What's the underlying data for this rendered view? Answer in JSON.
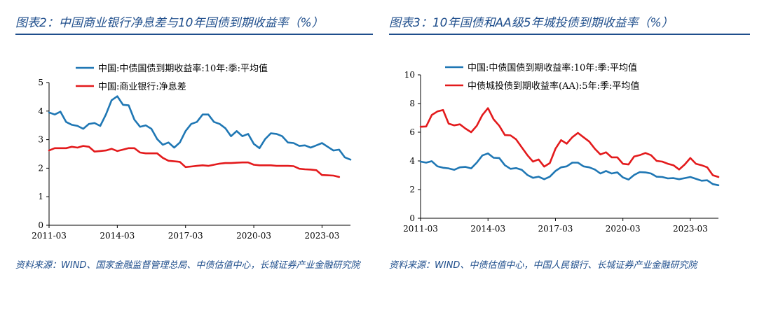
{
  "chart_data": [
    {
      "type": "line",
      "title": "图表2：中国商业银行净息差与10年国债到期收益率（%）",
      "source": "资料来源：WIND、国家金融监督管理总局、中债估值中心，长城证券产业金融研究院",
      "xlabel": "",
      "ylabel": "",
      "xticks": [
        "2011-03",
        "2014-03",
        "2017-03",
        "2020-03",
        "2023-03"
      ],
      "ylim": [
        0,
        5
      ],
      "yticks": [
        0,
        1,
        2,
        3,
        4,
        5
      ],
      "legend_position": "top-left",
      "grid": false,
      "series": [
        {
          "name": "中国:中债国债到期收益率:10年:季:平均值",
          "color": "#1f77b4",
          "values": [
            3.95,
            3.88,
            3.98,
            3.62,
            3.52,
            3.48,
            3.38,
            3.55,
            3.58,
            3.48,
            3.88,
            4.38,
            4.52,
            4.22,
            4.2,
            3.7,
            3.45,
            3.5,
            3.38,
            3.02,
            2.82,
            2.9,
            2.72,
            2.9,
            3.3,
            3.55,
            3.62,
            3.88,
            3.88,
            3.62,
            3.55,
            3.4,
            3.12,
            3.3,
            3.12,
            3.2,
            2.85,
            2.7,
            3.02,
            3.22,
            3.2,
            3.12,
            2.9,
            2.88,
            2.78,
            2.8,
            2.72,
            2.8,
            2.88,
            2.75,
            2.62,
            2.65,
            2.38,
            2.3
          ]
        },
        {
          "name": "中国:商业银行:净息差",
          "color": "#e31a1c",
          "values": [
            2.62,
            2.7,
            2.7,
            2.7,
            2.75,
            2.72,
            2.78,
            2.75,
            2.58,
            2.6,
            2.62,
            2.68,
            2.6,
            2.65,
            2.7,
            2.7,
            2.55,
            2.52,
            2.52,
            2.52,
            2.36,
            2.26,
            2.24,
            2.22,
            2.04,
            2.06,
            2.08,
            2.1,
            2.08,
            2.12,
            2.16,
            2.18,
            2.18,
            2.19,
            2.2,
            2.2,
            2.12,
            2.1,
            2.1,
            2.1,
            2.08,
            2.08,
            2.08,
            2.07,
            1.98,
            1.96,
            1.95,
            1.93,
            1.76,
            1.75,
            1.74,
            1.69
          ]
        }
      ]
    },
    {
      "type": "line",
      "title": "图表3：10年国债和AA级5年城投债到期收益率（%）",
      "source": "资料来源：WIND、中债估值中心，中国人民银行、长城证券产业金融研究院",
      "xlabel": "",
      "ylabel": "",
      "xticks": [
        "2011-03",
        "2014-03",
        "2017-03",
        "2020-03",
        "2023-03"
      ],
      "ylim": [
        0,
        10
      ],
      "yticks": [
        0,
        2,
        4,
        6,
        8,
        10
      ],
      "legend_position": "top-left",
      "grid": false,
      "series": [
        {
          "name": "中国:中债国债到期收益率:10年:季:平均值",
          "color": "#1f77b4",
          "values": [
            3.95,
            3.88,
            3.98,
            3.62,
            3.52,
            3.48,
            3.38,
            3.55,
            3.58,
            3.48,
            3.88,
            4.38,
            4.52,
            4.22,
            4.2,
            3.7,
            3.45,
            3.5,
            3.38,
            3.02,
            2.82,
            2.9,
            2.72,
            2.9,
            3.3,
            3.55,
            3.62,
            3.88,
            3.88,
            3.62,
            3.55,
            3.4,
            3.12,
            3.3,
            3.12,
            3.2,
            2.85,
            2.7,
            3.02,
            3.22,
            3.2,
            3.12,
            2.9,
            2.88,
            2.78,
            2.8,
            2.72,
            2.8,
            2.88,
            2.75,
            2.62,
            2.65,
            2.38,
            2.3
          ]
        },
        {
          "name": "中债城投债到期收益率(AA):5年:季:平均值",
          "color": "#e31a1c",
          "values": [
            6.38,
            6.4,
            7.2,
            7.45,
            7.55,
            6.6,
            6.48,
            6.55,
            6.25,
            6.0,
            6.45,
            7.2,
            7.68,
            6.9,
            6.45,
            5.8,
            5.78,
            5.5,
            4.95,
            4.4,
            3.95,
            4.1,
            3.6,
            3.85,
            4.85,
            5.45,
            5.2,
            5.65,
            5.95,
            5.65,
            5.35,
            4.85,
            4.45,
            4.6,
            4.25,
            4.25,
            3.8,
            3.75,
            4.3,
            4.4,
            4.55,
            4.4,
            4.0,
            3.95,
            3.8,
            3.7,
            3.4,
            3.75,
            4.2,
            3.8,
            3.7,
            3.55,
            3.0,
            2.88
          ]
        }
      ]
    }
  ]
}
